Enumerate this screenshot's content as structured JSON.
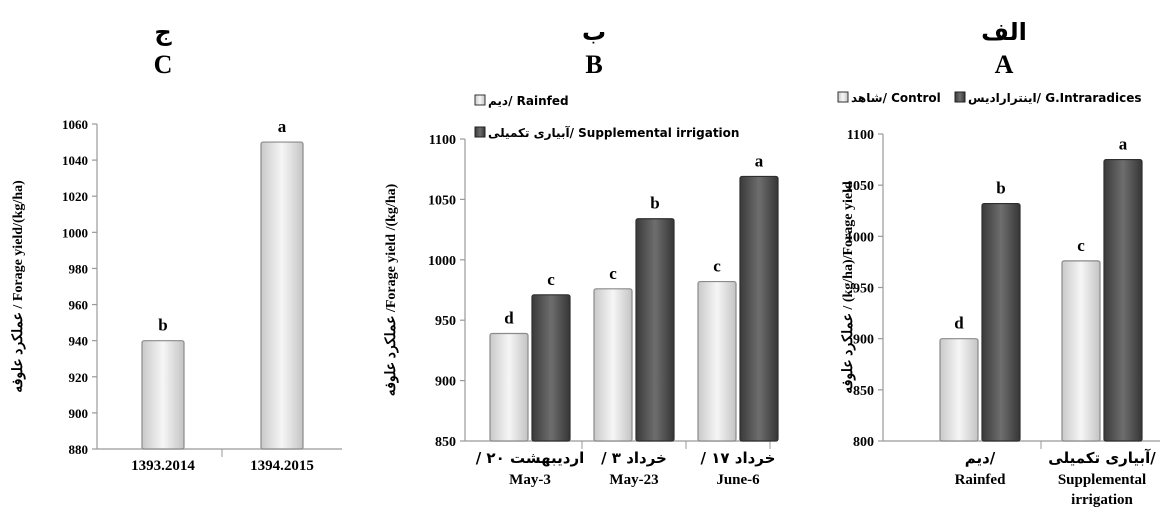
{
  "chart_data": [
    {
      "id": "C",
      "type": "bar",
      "panel_letter_fa": "ج",
      "panel_letter": "C",
      "ylabel": "عملکرد علوفه / Forage yield/(kg/ha)",
      "ylim": [
        880,
        1060
      ],
      "yticks": [
        "880",
        "900",
        "920",
        "940",
        "960",
        "980",
        "1000",
        "1020",
        "1040",
        "1060"
      ],
      "categories": [
        {
          "line1": "1393.2014",
          "line2": ""
        },
        {
          "line1": "1394.2015",
          "line2": ""
        }
      ],
      "legend": [],
      "grid": false,
      "series": [
        {
          "values": [
            940,
            1050
          ],
          "letters": [
            "b",
            "a"
          ],
          "color": "light"
        }
      ]
    },
    {
      "id": "B",
      "type": "bar",
      "panel_letter_fa": "ب",
      "panel_letter": "B",
      "ylabel": "عملکرد علوفه /Forage yield /(kg/ha)",
      "ylim": [
        850,
        1100
      ],
      "yticks": [
        "850",
        "900",
        "950",
        "1000",
        "1050",
        "1100"
      ],
      "categories": [
        {
          "line1": "/ ۲۰ اردیبهشت",
          "line2": "May-3"
        },
        {
          "line1": "/ ۳ خرداد",
          "line2": "May-23"
        },
        {
          "line1": "/ ۱۷ خرداد",
          "line2": "June-6"
        }
      ],
      "legend": [
        "دیم/ Rainfed",
        "آبیاری تکمیلی/ Supplemental irrigation"
      ],
      "legend_position": "top",
      "grid": false,
      "series": [
        {
          "name": "دیم/ Rainfed",
          "values": [
            939,
            976,
            982
          ],
          "letters": [
            "d",
            "c",
            "c"
          ],
          "color": "light"
        },
        {
          "name": "آبیاری تکمیلی/ Supplemental irrigation",
          "values": [
            971,
            1034,
            1069
          ],
          "letters": [
            "c",
            "b",
            "a"
          ],
          "color": "dark"
        }
      ]
    },
    {
      "id": "A",
      "type": "bar",
      "panel_letter_fa": "الف",
      "panel_letter": "A",
      "ylabel": "عملکرد علوفه / (kg/ha)/Forage yield",
      "ylim": [
        800,
        1100
      ],
      "yticks": [
        "800",
        "850",
        "900",
        "950",
        "1000",
        "1050",
        "1100"
      ],
      "categories": [
        {
          "line1": "دیم/",
          "line2": "Rainfed",
          "line3": ""
        },
        {
          "line1": "آبیاری تکمیلی/",
          "line2": "Supplemental",
          "line3": "irrigation"
        }
      ],
      "legend": [
        "شاهد/ Control",
        "اینترارادیس/ G.Intraradices"
      ],
      "legend_position": "top",
      "grid": false,
      "series": [
        {
          "name": "شاهد/ Control",
          "values": [
            900,
            976
          ],
          "letters": [
            "d",
            "c"
          ],
          "color": "light"
        },
        {
          "name": "اینترارادیس/ G.Intraradices",
          "values": [
            1032,
            1075
          ],
          "letters": [
            "b",
            "a"
          ],
          "color": "dark"
        }
      ]
    }
  ],
  "colors": {
    "light_bar_fill": "#ececec",
    "light_bar_edge": "#8a8a8a",
    "dark_bar_fill": "#555555",
    "dark_bar_edge": "#2e2e2e",
    "axis": "#999999"
  }
}
